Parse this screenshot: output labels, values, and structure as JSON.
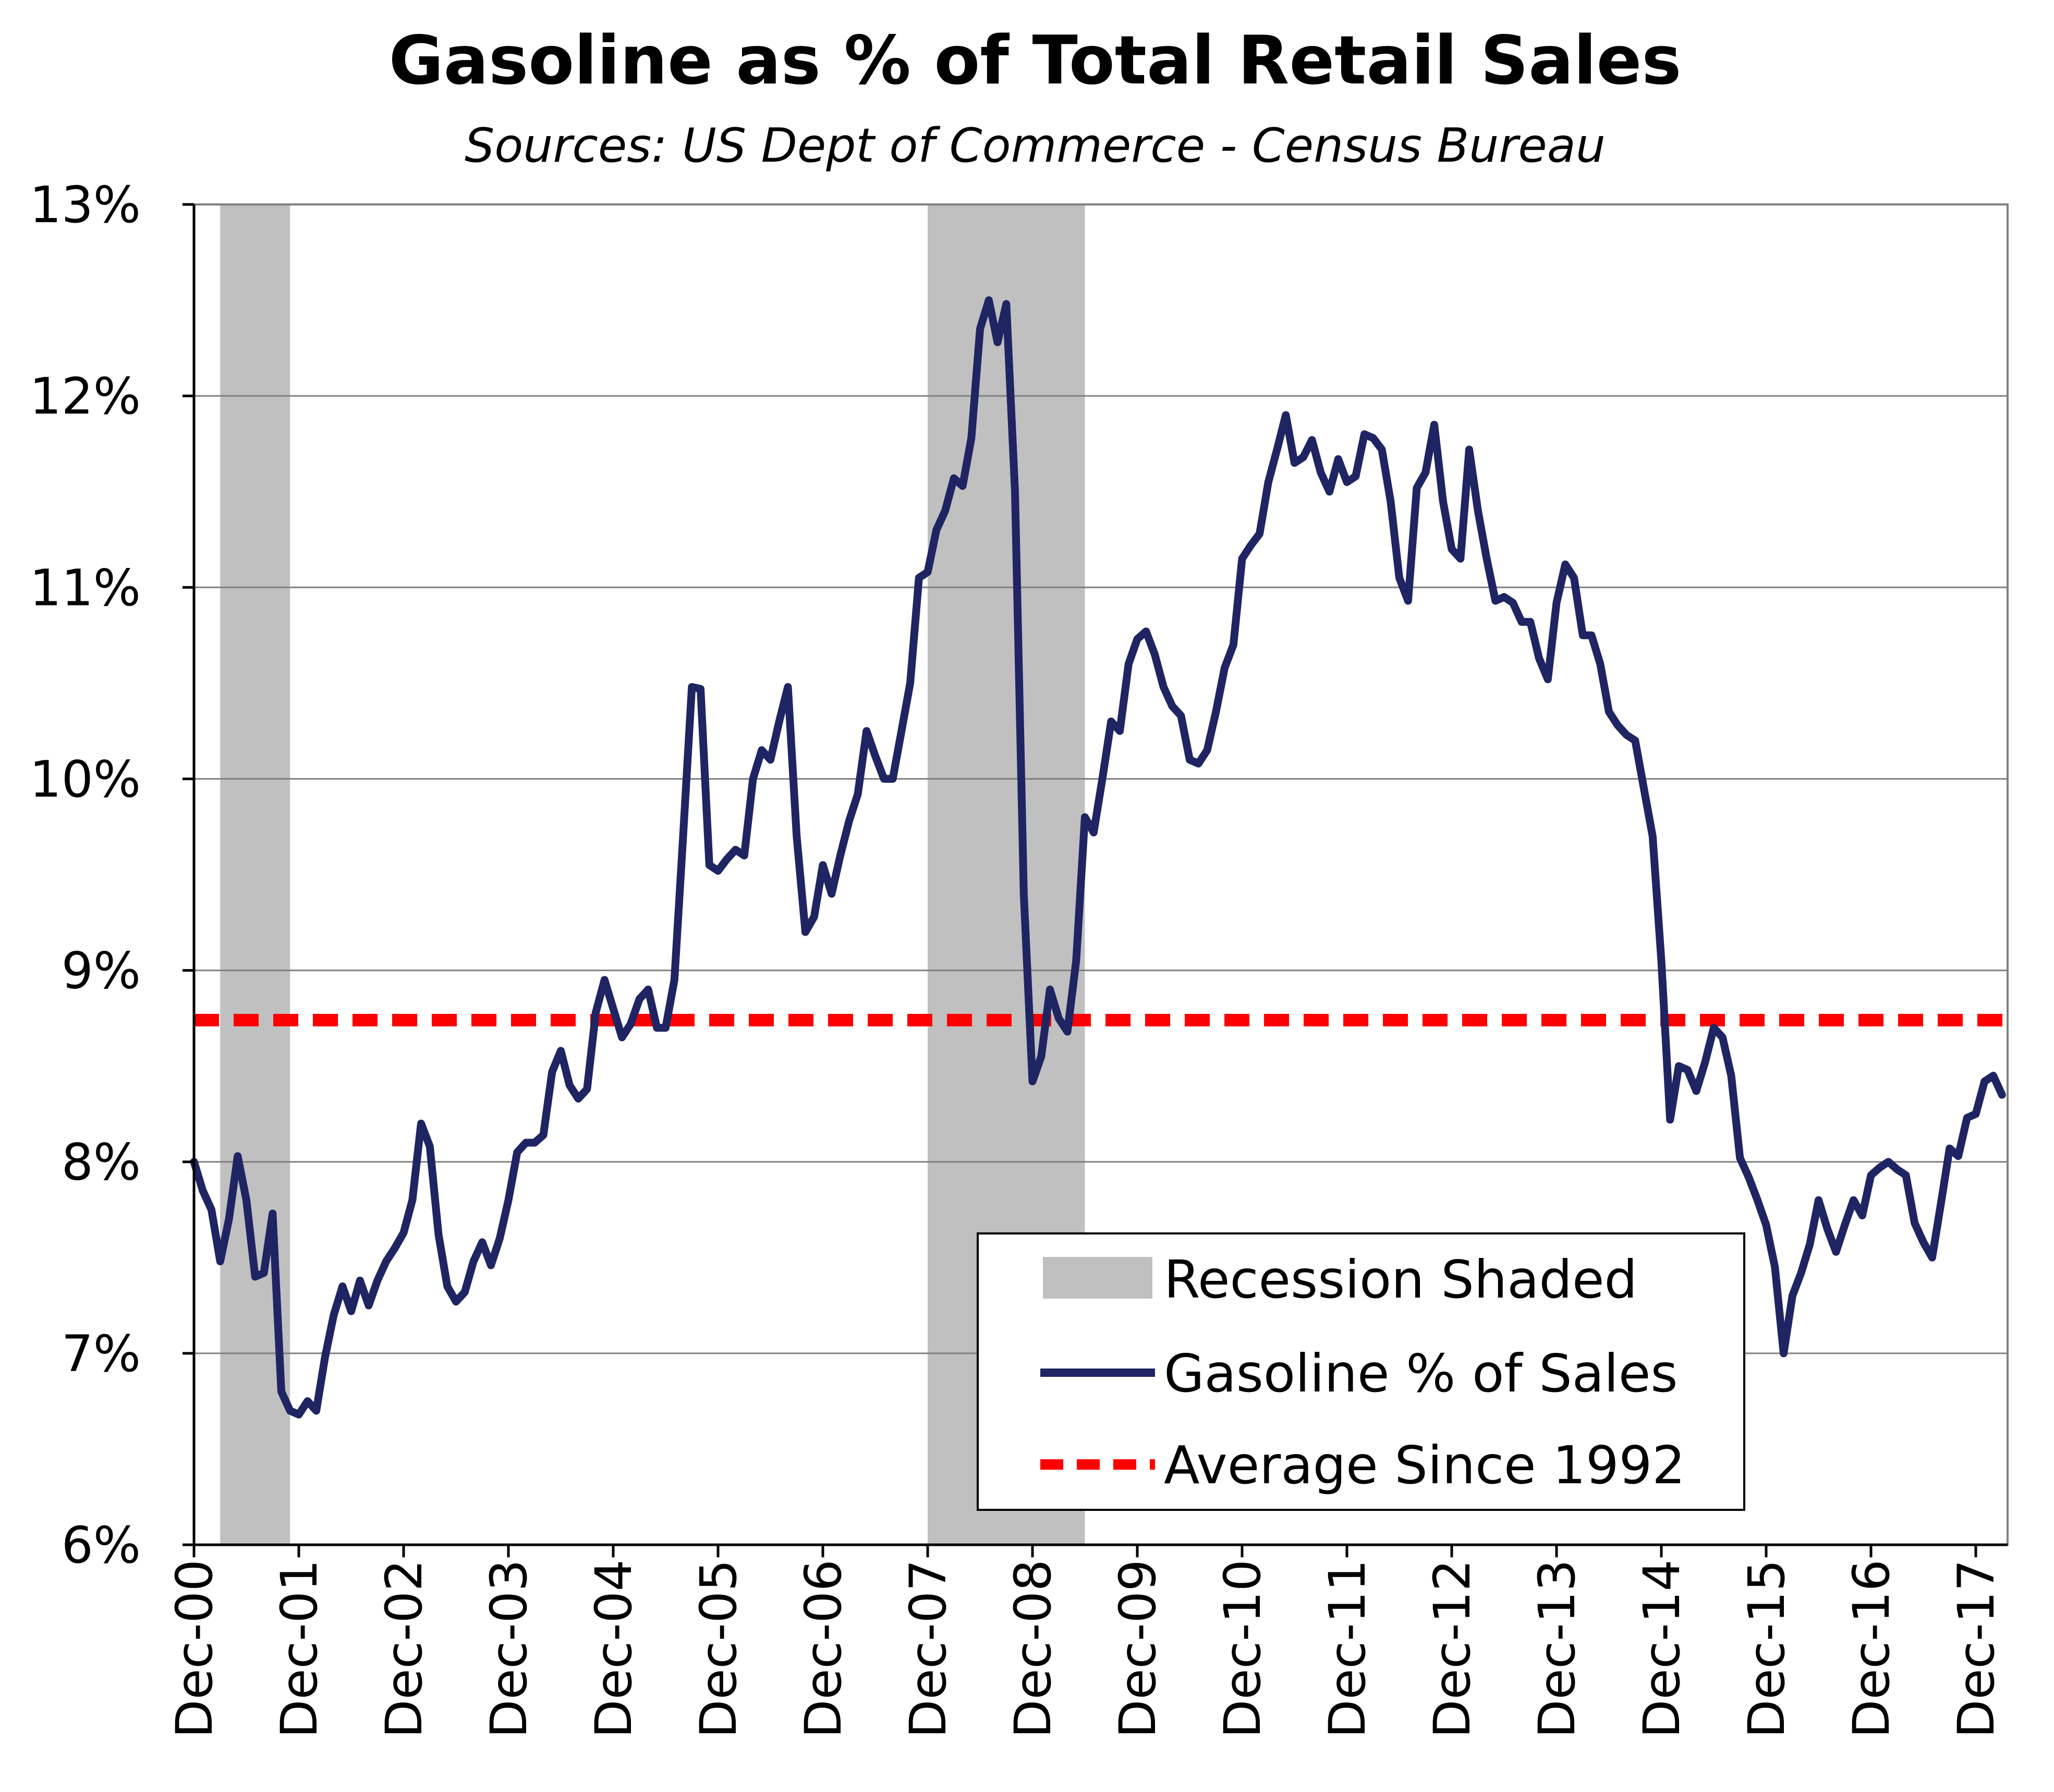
{
  "chart_data": {
    "type": "line",
    "title": "Gasoline as % of Total Retail Sales",
    "subtitle": "Sources: US Dept of Commerce - Census Bureau",
    "xlabel": "",
    "ylabel": "",
    "ylim": [
      6,
      13
    ],
    "y_ticks": [
      "6%",
      "7%",
      "8%",
      "9%",
      "10%",
      "11%",
      "12%",
      "13%"
    ],
    "x_ticks": [
      "Dec-00",
      "Dec-01",
      "Dec-02",
      "Dec-03",
      "Dec-04",
      "Dec-05",
      "Dec-06",
      "Dec-07",
      "Dec-08",
      "Dec-09",
      "Dec-10",
      "Dec-11",
      "Dec-12",
      "Dec-13",
      "Dec-14",
      "Dec-15",
      "Dec-16",
      "Dec-17"
    ],
    "grid": "horizontal",
    "legend": {
      "placement": "bottom-right",
      "entries": [
        "Recession Shaded",
        "Gasoline % of Sales",
        "Average Since 1992"
      ]
    },
    "recessions": [
      {
        "start": "Mar-01",
        "end": "Nov-01"
      },
      {
        "start": "Dec-07",
        "end": "Jun-09"
      }
    ],
    "average": {
      "name": "Average Since 1992",
      "value": 8.74,
      "color": "#ff0000"
    },
    "series": [
      {
        "name": "Gasoline % of Sales",
        "color": "#1f2462",
        "points": [
          [
            "Dec-00",
            8.0
          ],
          [
            "Jan-01",
            7.85
          ],
          [
            "Feb-01",
            7.75
          ],
          [
            "Mar-01",
            7.48
          ],
          [
            "Apr-01",
            7.7
          ],
          [
            "May-01",
            8.03
          ],
          [
            "Jun-01",
            7.8
          ],
          [
            "Jul-01",
            7.4
          ],
          [
            "Aug-01",
            7.42
          ],
          [
            "Sep-01",
            7.73
          ],
          [
            "Oct-01",
            6.8
          ],
          [
            "Nov-01",
            6.7
          ],
          [
            "Dec-01",
            6.68
          ],
          [
            "Jan-02",
            6.75
          ],
          [
            "Feb-02",
            6.7
          ],
          [
            "Mar-02",
            6.98
          ],
          [
            "Apr-02",
            7.2
          ],
          [
            "May-02",
            7.35
          ],
          [
            "Jun-02",
            7.22
          ],
          [
            "Jul-02",
            7.38
          ],
          [
            "Aug-02",
            7.25
          ],
          [
            "Sep-02",
            7.38
          ],
          [
            "Oct-02",
            7.48
          ],
          [
            "Nov-02",
            7.55
          ],
          [
            "Dec-02",
            7.63
          ],
          [
            "Jan-03",
            7.8
          ],
          [
            "Feb-03",
            8.2
          ],
          [
            "Mar-03",
            8.08
          ],
          [
            "Apr-03",
            7.62
          ],
          [
            "May-03",
            7.35
          ],
          [
            "Jun-03",
            7.27
          ],
          [
            "Jul-03",
            7.32
          ],
          [
            "Aug-03",
            7.48
          ],
          [
            "Sep-03",
            7.58
          ],
          [
            "Oct-03",
            7.46
          ],
          [
            "Nov-03",
            7.6
          ],
          [
            "Dec-03",
            7.8
          ],
          [
            "Jan-04",
            8.05
          ],
          [
            "Feb-04",
            8.1
          ],
          [
            "Mar-04",
            8.1
          ],
          [
            "Apr-04",
            8.14
          ],
          [
            "May-04",
            8.47
          ],
          [
            "Jun-04",
            8.58
          ],
          [
            "Jul-04",
            8.4
          ],
          [
            "Aug-04",
            8.33
          ],
          [
            "Sep-04",
            8.38
          ],
          [
            "Oct-04",
            8.78
          ],
          [
            "Nov-04",
            8.95
          ],
          [
            "Dec-04",
            8.8
          ],
          [
            "Jan-05",
            8.65
          ],
          [
            "Feb-05",
            8.72
          ],
          [
            "Mar-05",
            8.85
          ],
          [
            "Apr-05",
            8.9
          ],
          [
            "May-05",
            8.7
          ],
          [
            "Jun-05",
            8.7
          ],
          [
            "Jul-05",
            8.95
          ],
          [
            "Aug-05",
            9.7
          ],
          [
            "Sep-05",
            10.48
          ],
          [
            "Oct-05",
            10.47
          ],
          [
            "Nov-05",
            9.55
          ],
          [
            "Dec-05",
            9.52
          ],
          [
            "Jan-06",
            9.58
          ],
          [
            "Feb-06",
            9.63
          ],
          [
            "Mar-06",
            9.6
          ],
          [
            "Apr-06",
            10.0
          ],
          [
            "May-06",
            10.15
          ],
          [
            "Jun-06",
            10.1
          ],
          [
            "Jul-06",
            10.3
          ],
          [
            "Aug-06",
            10.48
          ],
          [
            "Sep-06",
            9.7
          ],
          [
            "Oct-06",
            9.2
          ],
          [
            "Nov-06",
            9.28
          ],
          [
            "Dec-06",
            9.55
          ],
          [
            "Jan-07",
            9.4
          ],
          [
            "Feb-07",
            9.6
          ],
          [
            "Mar-07",
            9.78
          ],
          [
            "Apr-07",
            9.92
          ],
          [
            "May-07",
            10.25
          ],
          [
            "Jun-07",
            10.12
          ],
          [
            "Jul-07",
            10.0
          ],
          [
            "Aug-07",
            10.0
          ],
          [
            "Sep-07",
            10.25
          ],
          [
            "Oct-07",
            10.5
          ],
          [
            "Nov-07",
            11.05
          ],
          [
            "Dec-07",
            11.08
          ],
          [
            "Jan-08",
            11.3
          ],
          [
            "Feb-08",
            11.4
          ],
          [
            "Mar-08",
            11.57
          ],
          [
            "Apr-08",
            11.53
          ],
          [
            "May-08",
            11.78
          ],
          [
            "Jun-08",
            12.35
          ],
          [
            "Jul-08",
            12.5
          ],
          [
            "Aug-08",
            12.28
          ],
          [
            "Sep-08",
            12.48
          ],
          [
            "Oct-08",
            11.5
          ],
          [
            "Nov-08",
            9.4
          ],
          [
            "Dec-08",
            8.42
          ],
          [
            "Jan-09",
            8.55
          ],
          [
            "Feb-09",
            8.9
          ],
          [
            "Mar-09",
            8.75
          ],
          [
            "Apr-09",
            8.68
          ],
          [
            "May-09",
            9.05
          ],
          [
            "Jun-09",
            9.8
          ],
          [
            "Jul-09",
            9.72
          ],
          [
            "Aug-09",
            10.0
          ],
          [
            "Sep-09",
            10.3
          ],
          [
            "Oct-09",
            10.25
          ],
          [
            "Nov-09",
            10.6
          ],
          [
            "Dec-09",
            10.73
          ],
          [
            "Jan-10",
            10.77
          ],
          [
            "Feb-10",
            10.65
          ],
          [
            "Mar-10",
            10.48
          ],
          [
            "Apr-10",
            10.38
          ],
          [
            "May-10",
            10.33
          ],
          [
            "Jun-10",
            10.1
          ],
          [
            "Jul-10",
            10.08
          ],
          [
            "Aug-10",
            10.15
          ],
          [
            "Sep-10",
            10.35
          ],
          [
            "Oct-10",
            10.58
          ],
          [
            "Nov-10",
            10.7
          ],
          [
            "Dec-10",
            11.15
          ],
          [
            "Jan-11",
            11.22
          ],
          [
            "Feb-11",
            11.28
          ],
          [
            "Mar-11",
            11.55
          ],
          [
            "Apr-11",
            11.72
          ],
          [
            "May-11",
            11.9
          ],
          [
            "Jun-11",
            11.65
          ],
          [
            "Jul-11",
            11.68
          ],
          [
            "Aug-11",
            11.77
          ],
          [
            "Sep-11",
            11.6
          ],
          [
            "Oct-11",
            11.5
          ],
          [
            "Nov-11",
            11.67
          ],
          [
            "Dec-11",
            11.55
          ],
          [
            "Jan-12",
            11.58
          ],
          [
            "Feb-12",
            11.8
          ],
          [
            "Mar-12",
            11.78
          ],
          [
            "Apr-12",
            11.72
          ],
          [
            "May-12",
            11.45
          ],
          [
            "Jun-12",
            11.05
          ],
          [
            "Jul-12",
            10.93
          ],
          [
            "Aug-12",
            11.52
          ],
          [
            "Sep-12",
            11.6
          ],
          [
            "Oct-12",
            11.85
          ],
          [
            "Nov-12",
            11.45
          ],
          [
            "Dec-12",
            11.2
          ],
          [
            "Jan-13",
            11.15
          ],
          [
            "Feb-13",
            11.72
          ],
          [
            "Mar-13",
            11.4
          ],
          [
            "Apr-13",
            11.15
          ],
          [
            "May-13",
            10.93
          ],
          [
            "Jun-13",
            10.95
          ],
          [
            "Jul-13",
            10.92
          ],
          [
            "Aug-13",
            10.82
          ],
          [
            "Sep-13",
            10.82
          ],
          [
            "Oct-13",
            10.63
          ],
          [
            "Nov-13",
            10.52
          ],
          [
            "Dec-13",
            10.92
          ],
          [
            "Jan-14",
            11.12
          ],
          [
            "Feb-14",
            11.05
          ],
          [
            "Mar-14",
            10.75
          ],
          [
            "Apr-14",
            10.75
          ],
          [
            "May-14",
            10.6
          ],
          [
            "Jun-14",
            10.35
          ],
          [
            "Jul-14",
            10.28
          ],
          [
            "Aug-14",
            10.23
          ],
          [
            "Sep-14",
            10.2
          ],
          [
            "Oct-14",
            9.95
          ],
          [
            "Nov-14",
            9.7
          ],
          [
            "Dec-14",
            9.05
          ],
          [
            "Jan-15",
            8.22
          ],
          [
            "Feb-15",
            8.5
          ],
          [
            "Mar-15",
            8.48
          ],
          [
            "Apr-15",
            8.37
          ],
          [
            "May-15",
            8.52
          ],
          [
            "Jun-15",
            8.7
          ],
          [
            "Jul-15",
            8.65
          ],
          [
            "Aug-15",
            8.45
          ],
          [
            "Sep-15",
            8.02
          ],
          [
            "Oct-15",
            7.92
          ],
          [
            "Nov-15",
            7.8
          ],
          [
            "Dec-15",
            7.67
          ],
          [
            "Jan-16",
            7.45
          ],
          [
            "Feb-16",
            7.0
          ],
          [
            "Mar-16",
            7.3
          ],
          [
            "Apr-16",
            7.42
          ],
          [
            "May-16",
            7.57
          ],
          [
            "Jun-16",
            7.8
          ],
          [
            "Jul-16",
            7.65
          ],
          [
            "Aug-16",
            7.53
          ],
          [
            "Sep-16",
            7.67
          ],
          [
            "Oct-16",
            7.8
          ],
          [
            "Nov-16",
            7.72
          ],
          [
            "Dec-16",
            7.93
          ],
          [
            "Jan-17",
            7.97
          ],
          [
            "Feb-17",
            8.0
          ],
          [
            "Mar-17",
            7.96
          ],
          [
            "Apr-17",
            7.93
          ],
          [
            "May-17",
            7.68
          ],
          [
            "Jun-17",
            7.58
          ],
          [
            "Jul-17",
            7.5
          ],
          [
            "Aug-17",
            7.78
          ],
          [
            "Sep-17",
            8.07
          ],
          [
            "Oct-17",
            8.03
          ],
          [
            "Nov-17",
            8.23
          ],
          [
            "Dec-17",
            8.25
          ],
          [
            "Jan-18",
            8.42
          ],
          [
            "Feb-18",
            8.45
          ],
          [
            "Mar-18",
            8.35
          ]
        ]
      }
    ]
  }
}
